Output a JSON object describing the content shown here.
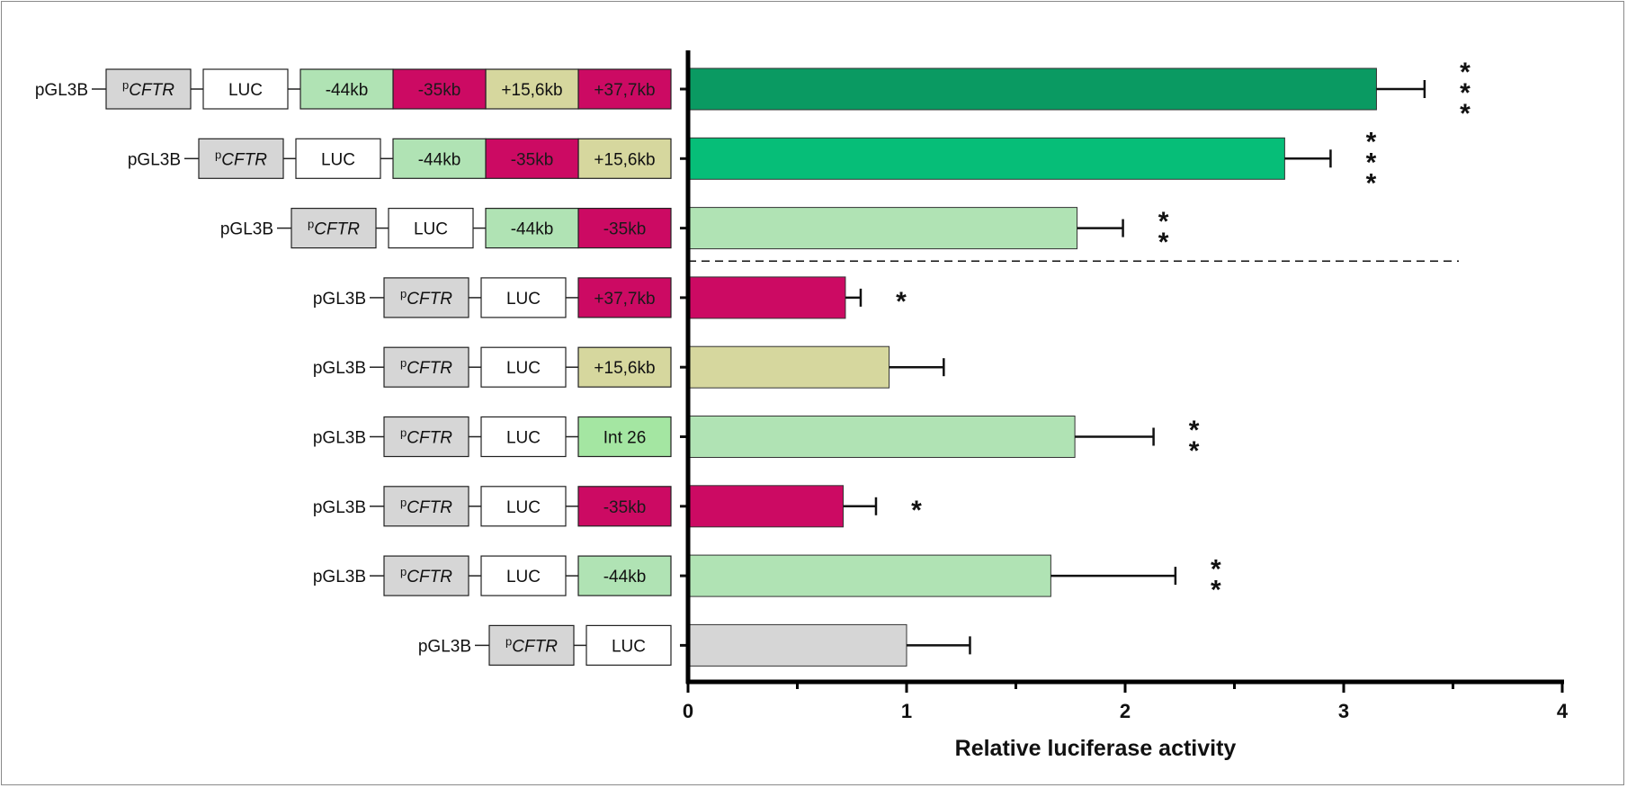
{
  "chart_data": {
    "type": "bar",
    "orientation": "horizontal",
    "xlabel": "Relative luciferase activity",
    "xlim": [
      0,
      4
    ],
    "x_ticks": [
      "0",
      "1",
      "2",
      "3",
      "4"
    ],
    "vector_prefix": "pGL3B",
    "promoter_label": {
      "superscript": "p",
      "name": "CFTR"
    },
    "reporter_label": "LUC",
    "element_colors": {
      "-44kb": "#b0e3b4",
      "-35kb": "#cc0a63",
      "+15,6kb": "#d6d79e",
      "+37,7kb": "#cc0a63",
      "Int 26": "#a4e6a2"
    },
    "promoter_color": "#d6d6d6",
    "rows": [
      {
        "elements": [
          "-44kb",
          "-35kb",
          "+15,6kb",
          "+37,7kb"
        ],
        "value": 3.15,
        "error": 0.22,
        "bar_color": "#0a9a62",
        "significance": "***"
      },
      {
        "elements": [
          "-44kb",
          "-35kb",
          "+15,6kb"
        ],
        "value": 2.73,
        "error": 0.21,
        "bar_color": "#06be78",
        "significance": "***"
      },
      {
        "elements": [
          "-44kb",
          "-35kb"
        ],
        "value": 1.78,
        "error": 0.21,
        "bar_color": "#b0e3b4",
        "significance": "**"
      },
      {
        "elements": [
          "+37,7kb"
        ],
        "value": 0.72,
        "error": 0.07,
        "bar_color": "#cc0a63",
        "significance": "*"
      },
      {
        "elements": [
          "+15,6kb"
        ],
        "value": 0.92,
        "error": 0.25,
        "bar_color": "#d6d79e",
        "significance": ""
      },
      {
        "elements": [
          "Int 26"
        ],
        "value": 1.77,
        "error": 0.36,
        "bar_color": "#b0e3b4",
        "significance": "**"
      },
      {
        "elements": [
          "-35kb"
        ],
        "value": 0.71,
        "error": 0.15,
        "bar_color": "#cc0a63",
        "significance": "*"
      },
      {
        "elements": [
          "-44kb"
        ],
        "value": 1.66,
        "error": 0.57,
        "bar_color": "#b0e3b4",
        "significance": "**"
      },
      {
        "elements": [],
        "value": 1.0,
        "error": 0.29,
        "bar_color": "#d6d6d6",
        "significance": ""
      }
    ],
    "separator_after_row": 3,
    "grid": false,
    "legend": "none"
  }
}
